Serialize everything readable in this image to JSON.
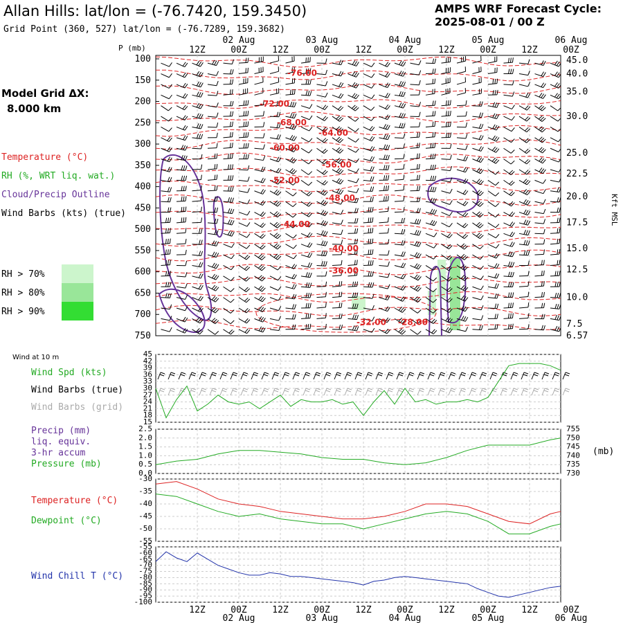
{
  "header": {
    "title": "Allan Hills:  lat/lon = (-76.7420, 159.3450)",
    "subtitle": "Grid Point (360, 527) lat/lon = (-76.7289, 159.3682)",
    "cycle_line1": "AMPS WRF Forecast Cycle:",
    "cycle_line2": "2025-08-01 / 00  Z"
  },
  "side": {
    "grid_label": "Model Grid ΔX:",
    "grid_value": "8.000 km",
    "legend": [
      {
        "text": "Temperature (°C)",
        "color": "#dd2222"
      },
      {
        "text": "RH (%, WRT liq. wat.)",
        "color": "#22aa22"
      },
      {
        "text": "Cloud/Precip Outline",
        "color": "#663399"
      },
      {
        "text": "Wind Barbs (kts) (true)",
        "color": "#000000"
      }
    ],
    "rh_levels": [
      {
        "text": "RH > 70%",
        "color": "#ccf5cc"
      },
      {
        "text": "RH > 80%",
        "color": "#99e699"
      },
      {
        "text": "RH > 90%",
        "color": "#33dd33"
      }
    ]
  },
  "time_axis": {
    "top_hour_labels": [
      "12Z",
      "00Z",
      "12Z",
      "00Z",
      "12Z",
      "00Z",
      "12Z",
      "00Z",
      "12Z",
      "00Z"
    ],
    "date_labels": [
      "02 Aug",
      "03 Aug",
      "04 Aug",
      "05 Aug",
      "06 Aug"
    ]
  },
  "chart_data": [
    {
      "type": "line",
      "panel": "cross_section",
      "ylabel": "P (mb)",
      "yticks": [
        100,
        150,
        200,
        250,
        300,
        350,
        400,
        450,
        500,
        550,
        600,
        650,
        700,
        750
      ],
      "right_axis_label": "Kft MSL",
      "right_ticks": [
        {
          "p": 103,
          "label": "45.0"
        },
        {
          "p": 135,
          "label": "40.0"
        },
        {
          "p": 177,
          "label": "35.0"
        },
        {
          "p": 235,
          "label": "30.0"
        },
        {
          "p": 321,
          "label": "25.0"
        },
        {
          "p": 370,
          "label": "22.5"
        },
        {
          "p": 423,
          "label": "20.0"
        },
        {
          "p": 484,
          "label": "17.5"
        },
        {
          "p": 545,
          "label": "15.0"
        },
        {
          "p": 595,
          "label": "12.5"
        },
        {
          "p": 660,
          "label": "10.0"
        },
        {
          "p": 722,
          "label": "7.5"
        },
        {
          "p": 750,
          "label": "6.57"
        }
      ],
      "temperature_labels": [
        {
          "text": "-36.00",
          "t": 121,
          "p": 110
        },
        {
          "text": "-76.00",
          "t": 38,
          "p": 140
        },
        {
          "text": "-72.00",
          "t": 30,
          "p": 212
        },
        {
          "text": "-68.00",
          "t": 35,
          "p": 256
        },
        {
          "text": "-64.00",
          "t": 47,
          "p": 280
        },
        {
          "text": "-60.00",
          "t": 33,
          "p": 315
        },
        {
          "text": "-56.00",
          "t": 48,
          "p": 355
        },
        {
          "text": "-52.00",
          "t": 33,
          "p": 392
        },
        {
          "text": "-48.00",
          "t": 49,
          "p": 433
        },
        {
          "text": "-44.00",
          "t": 36,
          "p": 495
        },
        {
          "text": "-40.00",
          "t": 50,
          "p": 552
        },
        {
          "text": "-36.00",
          "t": 50,
          "p": 604
        },
        {
          "text": "-32.00",
          "t": 58,
          "p": 725
        },
        {
          "text": "-28.00",
          "t": 70,
          "p": 725
        }
      ]
    },
    {
      "type": "line",
      "panel": "wind_10m",
      "title": "Wind at 10 m",
      "labels": [
        {
          "text": "Wind Spd (kts)",
          "color": "#22aa22"
        },
        {
          "text": "Wind Barbs (true)",
          "color": "#000000"
        },
        {
          "text": "Wind Barbs (grid)",
          "color": "#aaaaaa"
        }
      ],
      "yticks": [
        15,
        18,
        21,
        24,
        27,
        30,
        33,
        36,
        39,
        42,
        45
      ],
      "ylim": [
        15,
        45
      ],
      "x": [
        0,
        3,
        6,
        9,
        12,
        15,
        18,
        21,
        24,
        27,
        30,
        33,
        36,
        39,
        42,
        45,
        48,
        51,
        54,
        57,
        60,
        63,
        66,
        69,
        72,
        75,
        78,
        81,
        84,
        87,
        90,
        93,
        96,
        99,
        102,
        105,
        108,
        111,
        114,
        117
      ],
      "wind_speed": [
        30,
        17,
        25,
        31,
        20,
        23,
        27,
        24,
        23,
        24,
        21,
        24,
        27,
        22,
        25,
        24,
        24,
        25,
        23,
        24,
        18,
        24,
        29,
        23,
        30,
        24,
        25,
        23,
        24,
        24,
        25,
        24,
        26,
        33,
        40,
        41,
        41,
        41,
        40,
        38
      ]
    },
    {
      "type": "line",
      "panel": "precip_pressure",
      "labels": [
        {
          "text": "Precip (mm)",
          "color": "#663399"
        },
        {
          "text": "liq. equiv.",
          "color": "#663399"
        },
        {
          "text": "3-hr accum",
          "color": "#663399"
        },
        {
          "text": "Pressure (mb)",
          "color": "#22aa22"
        }
      ],
      "yticks_left": [
        0.0,
        0.5,
        1.0,
        1.5,
        2.0,
        2.5
      ],
      "yticks_right": [
        730,
        735,
        740,
        745,
        750,
        755
      ],
      "right_unit": "(mb)",
      "ylim_left": [
        0,
        2.5
      ],
      "ylim_right": [
        730,
        755
      ],
      "x": [
        0,
        6,
        12,
        18,
        24,
        30,
        36,
        42,
        48,
        54,
        60,
        66,
        72,
        78,
        84,
        90,
        96,
        102,
        108,
        114,
        117
      ],
      "pressure": [
        735,
        737,
        738,
        741,
        743,
        743,
        742,
        741,
        739,
        738,
        738,
        736,
        735,
        736,
        739,
        743,
        746,
        746,
        746,
        749,
        750
      ]
    },
    {
      "type": "line",
      "panel": "temp_dewpoint",
      "labels": [
        {
          "text": "Temperature (°C)",
          "color": "#dd2222"
        },
        {
          "text": "Dewpoint (°C)",
          "color": "#22aa22"
        }
      ],
      "yticks": [
        -30,
        -35,
        -40,
        -45,
        -50,
        -55
      ],
      "ylim": [
        -55,
        -30
      ],
      "x": [
        0,
        6,
        12,
        18,
        24,
        30,
        36,
        42,
        48,
        54,
        60,
        66,
        72,
        78,
        84,
        90,
        96,
        102,
        108,
        114,
        117
      ],
      "temperature": [
        -32,
        -31,
        -34,
        -38,
        -40,
        -41,
        -43,
        -44,
        -45,
        -46,
        -46,
        -45,
        -43,
        -40,
        -40,
        -41,
        -44,
        -47,
        -48,
        -44,
        -43
      ],
      "dewpoint": [
        -36,
        -37,
        -40,
        -43,
        -45,
        -44,
        -46,
        -47,
        -48,
        -48,
        -50,
        -48,
        -46,
        -44,
        -43,
        -44,
        -47,
        -52,
        -52,
        -49,
        -48
      ]
    },
    {
      "type": "line",
      "panel": "wind_chill",
      "labels": [
        {
          "text": "Wind Chill T (°C)",
          "color": "#2233aa"
        }
      ],
      "yticks": [
        -55,
        -60,
        -65,
        -70,
        -75,
        -80,
        -85,
        -90,
        -95,
        -100
      ],
      "ylim": [
        -100,
        -55
      ],
      "x": [
        0,
        3,
        6,
        9,
        12,
        15,
        18,
        21,
        24,
        27,
        30,
        33,
        36,
        39,
        42,
        45,
        48,
        51,
        54,
        57,
        60,
        63,
        66,
        69,
        72,
        75,
        78,
        81,
        84,
        87,
        90,
        93,
        96,
        99,
        102,
        105,
        108,
        111,
        114,
        117
      ],
      "wind_chill": [
        -67,
        -59,
        -64,
        -67,
        -60,
        -65,
        -70,
        -73,
        -76,
        -78,
        -78,
        -76,
        -77,
        -79,
        -79,
        -80,
        -81,
        -82,
        -83,
        -84,
        -86,
        -83,
        -82,
        -80,
        -79,
        -80,
        -81,
        -82,
        -83,
        -84,
        -85,
        -89,
        -92,
        -95,
        -96,
        -94,
        -92,
        -90,
        -88,
        -87
      ]
    }
  ]
}
